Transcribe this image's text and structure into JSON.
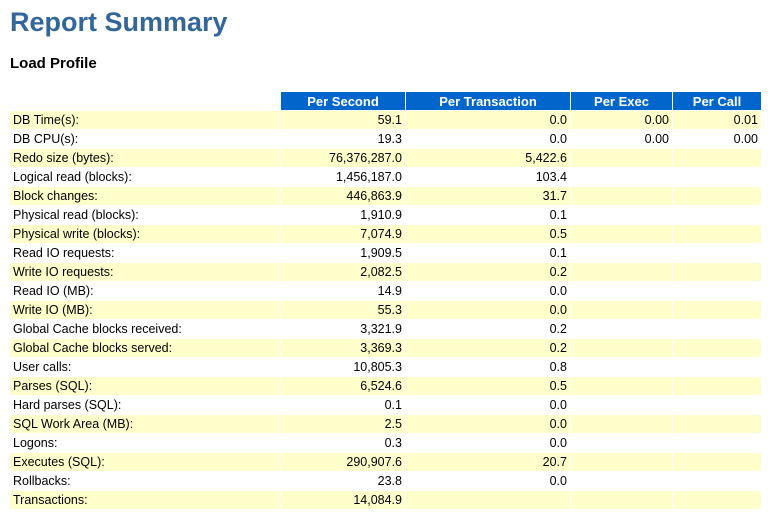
{
  "report": {
    "title": "Report Summary",
    "section_title": "Load Profile"
  },
  "table": {
    "headers": [
      "",
      "Per Second",
      "Per Transaction",
      "Per Exec",
      "Per Call"
    ],
    "rows": [
      [
        "DB Time(s):",
        "59.1",
        "0.0",
        "0.00",
        "0.01"
      ],
      [
        "DB CPU(s):",
        "19.3",
        "0.0",
        "0.00",
        "0.00"
      ],
      [
        "Redo size (bytes):",
        "76,376,287.0",
        "5,422.6",
        "",
        ""
      ],
      [
        "Logical read (blocks):",
        "1,456,187.0",
        "103.4",
        "",
        ""
      ],
      [
        "Block changes:",
        "446,863.9",
        "31.7",
        "",
        ""
      ],
      [
        "Physical read (blocks):",
        "1,910.9",
        "0.1",
        "",
        ""
      ],
      [
        "Physical write (blocks):",
        "7,074.9",
        "0.5",
        "",
        ""
      ],
      [
        "Read IO requests:",
        "1,909.5",
        "0.1",
        "",
        ""
      ],
      [
        "Write IO requests:",
        "2,082.5",
        "0.2",
        "",
        ""
      ],
      [
        "Read IO (MB):",
        "14.9",
        "0.0",
        "",
        ""
      ],
      [
        "Write IO (MB):",
        "55.3",
        "0.0",
        "",
        ""
      ],
      [
        "Global Cache blocks received:",
        "3,321.9",
        "0.2",
        "",
        ""
      ],
      [
        "Global Cache blocks served:",
        "3,369.3",
        "0.2",
        "",
        ""
      ],
      [
        "User calls:",
        "10,805.3",
        "0.8",
        "",
        ""
      ],
      [
        "Parses (SQL):",
        "6,524.6",
        "0.5",
        "",
        ""
      ],
      [
        "Hard parses (SQL):",
        "0.1",
        "0.0",
        "",
        ""
      ],
      [
        "SQL Work Area (MB):",
        "2.5",
        "0.0",
        "",
        ""
      ],
      [
        "Logons:",
        "0.3",
        "0.0",
        "",
        ""
      ],
      [
        "Executes (SQL):",
        "290,907.6",
        "20.7",
        "",
        ""
      ],
      [
        "Rollbacks:",
        "23.8",
        "0.0",
        "",
        ""
      ],
      [
        "Transactions:",
        "14,084.9",
        "",
        "",
        ""
      ]
    ]
  },
  "colors": {
    "title": "#336699",
    "header_bg": "#0066cc",
    "header_text": "#ffffff",
    "row_highlight": "#ffffcc",
    "row_plain": "#ffffff"
  }
}
